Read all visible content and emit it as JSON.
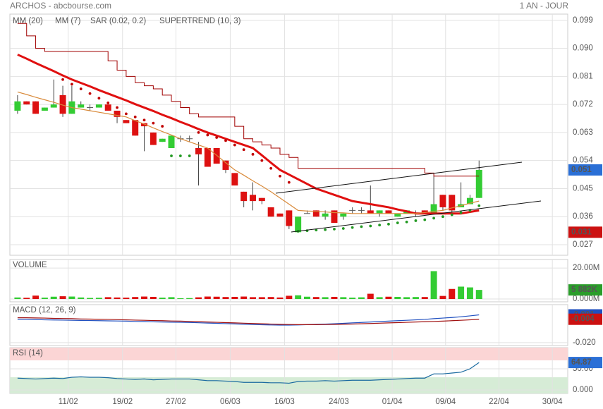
{
  "header": {
    "title": "ARCHOS - abcbourse.com",
    "period": "1 AN - JOUR"
  },
  "chart_data": [
    {
      "type": "candlestick",
      "xlim": [
        -0.85,
        60.8
      ],
      "xticks": [
        {
          "value": 5.6,
          "label": "11/02"
        },
        {
          "value": 11.6,
          "label": "19/02"
        },
        {
          "value": 17.5,
          "label": "27/02"
        },
        {
          "value": 23.5,
          "label": "06/03"
        },
        {
          "value": 29.5,
          "label": "16/03"
        },
        {
          "value": 35.5,
          "label": "24/03"
        },
        {
          "value": 41.4,
          "label": "01/04"
        },
        {
          "value": 47.3,
          "label": "09/04"
        },
        {
          "value": 53.2,
          "label": "22/04"
        },
        {
          "value": 59.1,
          "label": "30/04"
        }
      ],
      "ylim": [
        0.0236,
        0.101
      ],
      "yticks": [
        0.099,
        {
          "value": 0.09,
          "label": "0.090"
        },
        0.081,
        0.072,
        0.063,
        0.054,
        0.045,
        0.036,
        0.027
      ],
      "grid": true,
      "candles": {
        "up_color": "#33cc33",
        "down_color": "#dd1111",
        "flat_color": "#555555",
        "open": [
          0.07,
          0.073,
          0.073,
          0.07,
          0.071,
          0.075,
          0.069,
          0.071,
          0.071,
          0.071,
          0.072,
          0.07,
          0.067,
          0.067,
          0.066,
          0.063,
          0.06,
          0.058,
          0.061,
          0.061,
          0.058,
          0.058,
          0.058,
          0.054,
          0.05,
          0.044,
          0.043,
          0.042,
          0.039,
          0.037,
          0.038,
          0.031,
          0.037,
          0.038,
          0.036,
          0.038,
          0.036,
          0.038,
          0.038,
          0.038,
          0.037,
          0.038,
          0.036,
          0.037,
          0.037,
          0.038,
          0.037,
          0.043,
          0.043,
          0.039,
          0.04,
          0.042
        ],
        "high": [
          0.075,
          0.073,
          0.073,
          0.071,
          0.08,
          0.078,
          0.078,
          0.073,
          0.072,
          0.072,
          0.072,
          0.07,
          0.067,
          0.067,
          0.066,
          0.063,
          0.061,
          0.062,
          0.062,
          0.062,
          0.06,
          0.058,
          0.058,
          0.054,
          0.05,
          0.044,
          0.047,
          0.042,
          0.039,
          0.037,
          0.038,
          0.036,
          0.038,
          0.038,
          0.038,
          0.038,
          0.037,
          0.039,
          0.039,
          0.046,
          0.038,
          0.038,
          0.037,
          0.038,
          0.038,
          0.038,
          0.049,
          0.043,
          0.043,
          0.047,
          0.043,
          0.054
        ],
        "low": [
          0.069,
          0.072,
          0.069,
          0.07,
          0.071,
          0.068,
          0.069,
          0.071,
          0.07,
          0.071,
          0.07,
          0.066,
          0.066,
          0.062,
          0.057,
          0.059,
          0.06,
          0.058,
          0.06,
          0.06,
          0.046,
          0.052,
          0.053,
          0.05,
          0.046,
          0.039,
          0.038,
          0.04,
          0.036,
          0.036,
          0.032,
          0.031,
          0.037,
          0.036,
          0.035,
          0.034,
          0.035,
          0.037,
          0.037,
          0.037,
          0.036,
          0.037,
          0.036,
          0.037,
          0.036,
          0.037,
          0.037,
          0.038,
          0.037,
          0.039,
          0.04,
          0.042
        ],
        "close": [
          0.073,
          0.072,
          0.069,
          0.071,
          0.072,
          0.069,
          0.073,
          0.072,
          0.071,
          0.072,
          0.07,
          0.068,
          0.066,
          0.062,
          0.065,
          0.059,
          0.061,
          0.062,
          0.061,
          0.061,
          0.056,
          0.052,
          0.053,
          0.051,
          0.046,
          0.041,
          0.041,
          0.041,
          0.036,
          0.036,
          0.033,
          0.036,
          0.037,
          0.036,
          0.037,
          0.034,
          0.037,
          0.038,
          0.038,
          0.037,
          0.038,
          0.037,
          0.037,
          0.038,
          0.037,
          0.037,
          0.04,
          0.039,
          0.038,
          0.04,
          0.042,
          0.051
        ]
      },
      "series": [
        {
          "name": "MM (20)",
          "color": "#e01010",
          "width": 3,
          "style": "line",
          "values": [
            0.088,
            0.0867,
            0.0853,
            0.084,
            0.0827,
            0.0813,
            0.08,
            0.0789,
            0.0778,
            0.0766,
            0.0755,
            0.0744,
            0.0733,
            0.0721,
            0.071,
            0.0699,
            0.0687,
            0.0676,
            0.0664,
            0.0653,
            0.0641,
            0.063,
            0.062,
            0.061,
            0.06,
            0.059,
            0.058,
            0.0557,
            0.0533,
            0.051,
            0.0495,
            0.048,
            0.0465,
            0.045,
            0.044,
            0.043,
            0.042,
            0.041,
            0.0405,
            0.04,
            0.0395,
            0.039,
            0.0383,
            0.0377,
            0.037,
            0.037,
            0.037,
            0.037,
            0.037,
            0.037,
            0.0375,
            0.038
          ]
        },
        {
          "name": "MM (7)",
          "color": "#d98a3a",
          "width": 1.2,
          "style": "line",
          "values": [
            0.076,
            0.0752,
            0.0743,
            0.0735,
            0.0727,
            0.0718,
            0.071,
            0.0705,
            0.07,
            0.0695,
            0.069,
            0.0685,
            0.068,
            0.0668,
            0.0657,
            0.0645,
            0.0633,
            0.0622,
            0.061,
            0.06,
            0.059,
            0.058,
            0.0557,
            0.0533,
            0.051,
            0.0493,
            0.0475,
            0.0458,
            0.044,
            0.042,
            0.04,
            0.038,
            0.0378,
            0.0377,
            0.0375,
            0.0373,
            0.0372,
            0.037,
            0.037,
            0.037,
            0.037,
            0.037,
            0.037,
            0.037,
            0.037,
            0.0373,
            0.0377,
            0.038,
            0.0388,
            0.0395,
            0.0403,
            0.041
          ]
        },
        {
          "name": "SAR (0.02, 0.2)",
          "color": "#c00000",
          "below_color": "#229922",
          "style": "dots",
          "values": [
            null,
            null,
            null,
            null,
            null,
            0.08,
            0.0785,
            0.077,
            0.0755,
            0.074,
            0.0725,
            0.071,
            0.069,
            0.068,
            0.067,
            0.066,
            0.065,
            0.0555,
            0.0555,
            0.0555,
            0.063,
            0.0622,
            0.0614,
            0.0604,
            0.059,
            0.0575,
            0.056,
            0.054,
            0.0515,
            0.049,
            0.047,
            0.0313,
            0.0315,
            0.0317,
            0.0318,
            0.032,
            0.0322,
            0.0325,
            0.0328,
            0.033,
            0.0333,
            0.0336,
            0.034,
            0.0343,
            0.0347,
            0.035,
            0.0355,
            0.036,
            0.0366,
            0.0373,
            0.038,
            0.0395
          ]
        },
        {
          "name": "SUPERTREND (10, 3)",
          "color": "#a00000",
          "width": 1,
          "style": "step",
          "values": [
            0.098,
            0.094,
            0.09,
            0.089,
            0.089,
            0.089,
            0.089,
            0.089,
            0.089,
            0.089,
            0.086,
            0.083,
            0.081,
            0.079,
            0.078,
            0.077,
            0.075,
            0.073,
            0.071,
            0.069,
            0.068,
            0.068,
            0.068,
            0.068,
            0.065,
            0.061,
            0.06,
            0.059,
            0.058,
            0.056,
            0.055,
            0.0515,
            0.0515,
            0.0515,
            0.0515,
            0.0515,
            0.0515,
            0.0515,
            0.0515,
            0.0515,
            0.0515,
            0.0515,
            0.0515,
            0.0515,
            0.0515,
            0.05,
            0.049,
            0.049,
            0.049,
            0.049,
            0.049,
            0.049
          ]
        }
      ],
      "markers": [
        {
          "value": 0.051,
          "color": "#2a6fd6"
        },
        {
          "value": 0.031,
          "color": "#cc1111"
        }
      ]
    },
    {
      "type": "bar",
      "title": "VOLUME",
      "title_color": "#2a9d2a",
      "ylim": [
        -1.8,
        25.5
      ],
      "yticks": [
        {
          "value": 20,
          "label": "20.00M"
        },
        {
          "value": 0,
          "label": "0.000M"
        }
      ],
      "grid": true,
      "values": [
        1.0,
        0.8,
        2.2,
        0.9,
        1.5,
        1.8,
        1.6,
        1.0,
        0.7,
        0.8,
        1.2,
        1.0,
        0.9,
        1.3,
        1.6,
        1.4,
        0.9,
        1.2,
        0.5,
        0.6,
        1.1,
        1.6,
        1.5,
        1.3,
        1.4,
        1.6,
        1.2,
        1.2,
        1.3,
        1.0,
        2.1,
        2.4,
        1.5,
        1.3,
        1.2,
        1.4,
        1.2,
        0.9,
        1.1,
        3.4,
        1.2,
        1.5,
        1.4,
        1.2,
        1.3,
        1.3,
        18.0,
        2.0,
        6.5,
        8.0,
        7.5,
        5.882
      ],
      "markers": [
        {
          "value": 5.882,
          "label": "5 882K",
          "color": "#2a9d2a"
        }
      ]
    },
    {
      "type": "line",
      "title": "MACD (12, 26, 9)",
      "title_color": "#2a5db0",
      "ylim": [
        -0.022,
        0.006
      ],
      "yticks": [
        {
          "value": -0.02,
          "label": "-0.020"
        }
      ],
      "grid": true,
      "series": [
        {
          "color": "#2050c0",
          "values": [
            -0.004,
            -0.004,
            -0.0042,
            -0.0044,
            -0.0045,
            -0.0046,
            -0.0047,
            -0.0048,
            -0.0049,
            -0.005,
            -0.0051,
            -0.0052,
            -0.0053,
            -0.0055,
            -0.0056,
            -0.0058,
            -0.0059,
            -0.006,
            -0.0061,
            -0.0062,
            -0.0064,
            -0.0066,
            -0.0068,
            -0.007,
            -0.0072,
            -0.0074,
            -0.0076,
            -0.0078,
            -0.0079,
            -0.008,
            -0.008,
            -0.0079,
            -0.0077,
            -0.0075,
            -0.0073,
            -0.0071,
            -0.0068,
            -0.0065,
            -0.0062,
            -0.0059,
            -0.0056,
            -0.0053,
            -0.005,
            -0.0047,
            -0.0044,
            -0.0041,
            -0.0036,
            -0.0032,
            -0.0028,
            -0.0023,
            -0.0017,
            -0.001
          ]
        },
        {
          "color": "#a01010",
          "values": [
            -0.003,
            -0.003,
            -0.0031,
            -0.0032,
            -0.0034,
            -0.0035,
            -0.0036,
            -0.0038,
            -0.0039,
            -0.004,
            -0.0041,
            -0.0043,
            -0.0044,
            -0.0046,
            -0.0047,
            -0.0049,
            -0.005,
            -0.0052,
            -0.0053,
            -0.0055,
            -0.0057,
            -0.0059,
            -0.0061,
            -0.0063,
            -0.0065,
            -0.0067,
            -0.0069,
            -0.0071,
            -0.0073,
            -0.0075,
            -0.0076,
            -0.0077,
            -0.0077,
            -0.0077,
            -0.0076,
            -0.0075,
            -0.0074,
            -0.0073,
            -0.0071,
            -0.0069,
            -0.0067,
            -0.0065,
            -0.0063,
            -0.0061,
            -0.0059,
            -0.0057,
            -0.0055,
            -0.0053,
            -0.005,
            -0.0047,
            -0.0044,
            -0.004
          ]
        }
      ],
      "markers": [
        {
          "value": -0.001,
          "color": "#2050c0"
        },
        {
          "value": -0.004,
          "color": "#cc1111"
        }
      ]
    },
    {
      "type": "line",
      "title": "RSI (14)",
      "title_color": "#2a5db0",
      "ylim": [
        -8.3,
        100
      ],
      "yticks": [
        {
          "value": 50,
          "label": "50.00"
        },
        {
          "value": 0,
          "label": "0.000"
        }
      ],
      "grid": true,
      "zones": [
        {
          "from": 70,
          "to": 100,
          "color": "#fbd5d5"
        },
        {
          "from": -8.3,
          "to": 30,
          "color": "#d6ecd6"
        }
      ],
      "series": [
        {
          "color": "#1a6aa0",
          "values": [
            28,
            27,
            26,
            27,
            28,
            27,
            30,
            31,
            30,
            30,
            29,
            27,
            26,
            25,
            26,
            24,
            25,
            26,
            26,
            26,
            24,
            22,
            22,
            21,
            20,
            18,
            18,
            18,
            17,
            17,
            16,
            20,
            21,
            21,
            22,
            21,
            22,
            23,
            23,
            23,
            24,
            25,
            26,
            27,
            28,
            28,
            38,
            38,
            40,
            42,
            50,
            64.87
          ]
        }
      ],
      "markers": [
        {
          "value": 64.87,
          "color": "#2a6fd6"
        }
      ]
    }
  ]
}
